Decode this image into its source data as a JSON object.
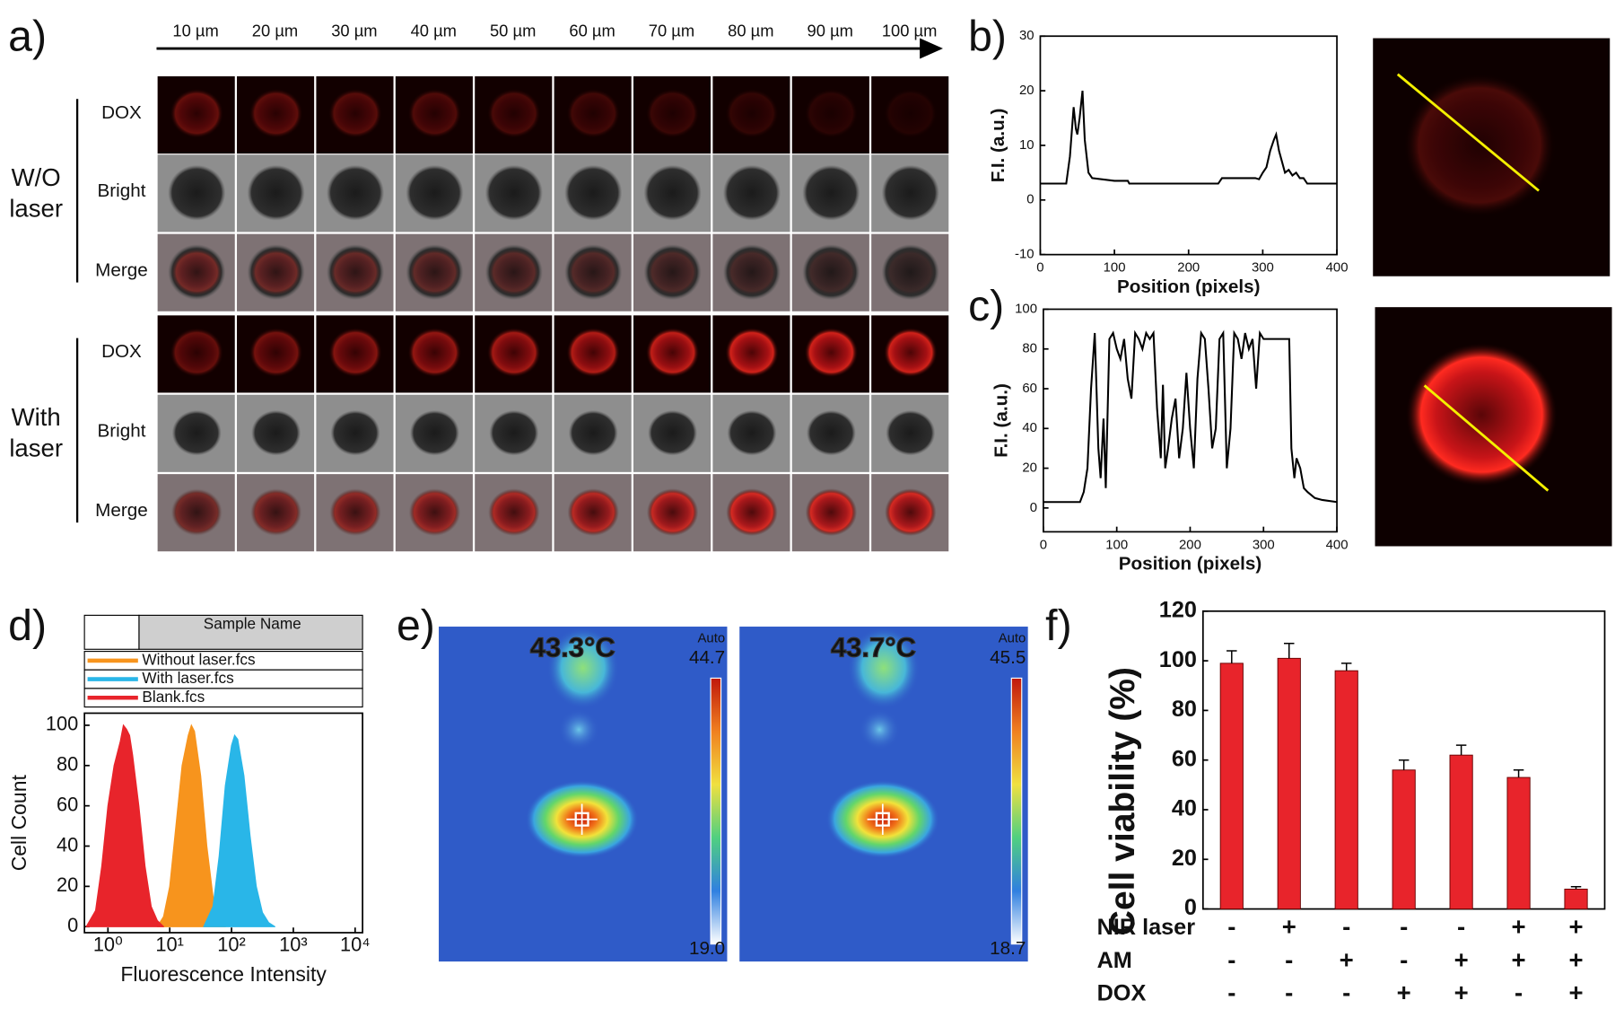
{
  "panel_labels": [
    "a)",
    "b)",
    "c)",
    "d)",
    "e)",
    "f)"
  ],
  "panel_a": {
    "depths": [
      "10 µm",
      "20 µm",
      "30 µm",
      "40 µm",
      "50 µm",
      "60 µm",
      "70 µm",
      "80 µm",
      "90 µm",
      "100 µm"
    ],
    "groups": [
      {
        "label_lines": [
          "W/O",
          "laser"
        ],
        "rows": [
          "DOX",
          "Bright",
          "Merge"
        ]
      },
      {
        "label_lines": [
          "With",
          "laser"
        ],
        "rows": [
          "DOX",
          "Bright",
          "Merge"
        ]
      }
    ]
  },
  "chart_data": [
    {
      "type": "line",
      "xlabel": "Position (pixels)",
      "ylabel": "F.I. (a.u.)",
      "color": "#000000",
      "x": [
        0,
        20,
        35,
        40,
        45,
        48,
        50,
        53,
        57,
        60,
        65,
        70,
        100,
        118,
        120,
        125,
        200,
        240,
        245,
        290,
        295,
        300,
        305,
        310,
        315,
        318,
        322,
        326,
        330,
        335,
        340,
        345,
        350,
        355,
        360,
        400
      ],
      "values": [
        3,
        3,
        3,
        8,
        17,
        13,
        12,
        15,
        20,
        11,
        5,
        4,
        3.5,
        3.5,
        3,
        3,
        3,
        3,
        4,
        4,
        3.8,
        5,
        6,
        9,
        11,
        12,
        9,
        7,
        5,
        5.5,
        4.5,
        5,
        4,
        4,
        3,
        3
      ],
      "xlim": [
        0,
        400
      ],
      "xticks": [
        0,
        100,
        200,
        300,
        400
      ],
      "ylim": [
        -10,
        30
      ],
      "yticks": [
        -10,
        0,
        10,
        20,
        30
      ]
    },
    {
      "type": "line",
      "xlabel": "Position (pixels)",
      "ylabel": "F.I. (a.u.)",
      "color": "#000000",
      "x": [
        0,
        50,
        55,
        60,
        65,
        70,
        75,
        78,
        82,
        85,
        90,
        95,
        100,
        105,
        110,
        115,
        120,
        125,
        130,
        135,
        140,
        145,
        150,
        155,
        160,
        163,
        166,
        170,
        175,
        180,
        185,
        190,
        195,
        200,
        205,
        210,
        215,
        220,
        225,
        230,
        235,
        240,
        245,
        250,
        255,
        260,
        265,
        270,
        275,
        280,
        285,
        290,
        295,
        300,
        335,
        338,
        342,
        345,
        350,
        355,
        360,
        370,
        380,
        400
      ],
      "values": [
        3,
        3,
        8,
        20,
        60,
        88,
        30,
        15,
        45,
        10,
        85,
        88,
        80,
        75,
        85,
        65,
        55,
        88,
        85,
        80,
        88,
        85,
        88,
        50,
        25,
        62,
        20,
        30,
        45,
        55,
        25,
        40,
        68,
        40,
        20,
        65,
        88,
        85,
        60,
        30,
        40,
        85,
        88,
        20,
        40,
        88,
        85,
        75,
        88,
        80,
        85,
        60,
        88,
        85,
        85,
        30,
        15,
        25,
        20,
        10,
        8,
        5,
        4,
        3
      ],
      "xlim": [
        0,
        400
      ],
      "xticks": [
        0,
        100,
        200,
        300,
        400
      ],
      "ylim": [
        -12,
        100
      ],
      "yticks": [
        0,
        20,
        40,
        60,
        80,
        100
      ]
    },
    {
      "type": "area",
      "xlabel": "Fluorescence Intensity",
      "ylabel": "Cell Count",
      "legend_header": "Sample Name",
      "series": [
        {
          "name": "Without laser.fcs",
          "color": "#f7941d",
          "x": [
            0.8,
            0.9,
            1.0,
            1.1,
            1.2,
            1.3,
            1.35,
            1.4,
            1.5,
            1.6,
            1.7,
            1.8,
            1.9
          ],
          "values": [
            0,
            5,
            20,
            50,
            80,
            95,
            100,
            97,
            75,
            40,
            15,
            3,
            0
          ]
        },
        {
          "name": "With laser.fcs",
          "color": "#29b6e8",
          "x": [
            1.55,
            1.7,
            1.8,
            1.9,
            2.0,
            2.05,
            2.1,
            2.2,
            2.3,
            2.4,
            2.5,
            2.6,
            2.7
          ],
          "values": [
            0,
            10,
            35,
            70,
            90,
            95,
            93,
            75,
            45,
            20,
            7,
            2,
            0
          ]
        },
        {
          "name": "Blank.fcs",
          "color": "#e8242b",
          "x": [
            -0.35,
            -0.2,
            -0.1,
            0,
            0.1,
            0.2,
            0.25,
            0.3,
            0.35,
            0.4,
            0.5,
            0.6,
            0.7,
            0.8,
            0.9
          ],
          "values": [
            0,
            8,
            30,
            60,
            80,
            92,
            100,
            98,
            95,
            85,
            60,
            30,
            10,
            3,
            0
          ]
        }
      ],
      "xlim": [
        -0.38,
        4.12
      ],
      "xticks": [
        {
          "value": 0,
          "label": "10⁰"
        },
        {
          "value": 1,
          "label": "10¹"
        },
        {
          "value": 2,
          "label": "10²"
        },
        {
          "value": 3,
          "label": "10³"
        },
        {
          "value": 4,
          "label": "10⁴"
        }
      ],
      "ylim": [
        -3,
        106
      ],
      "yticks": [
        0,
        20,
        40,
        60,
        80,
        100
      ]
    },
    {
      "type": "bar",
      "ylabel": "Cell viability (%)",
      "color": "#e8242b",
      "categories": [
        null,
        null,
        null,
        null,
        null,
        null,
        null
      ],
      "values": [
        99,
        101,
        96,
        56,
        62,
        53,
        8
      ],
      "errors": [
        5,
        6,
        3,
        4,
        4,
        3,
        1
      ],
      "ylim": [
        0,
        120
      ],
      "yticks": [
        0,
        20,
        40,
        60,
        80,
        100,
        120
      ],
      "conditions": [
        {
          "name": "NIR laser",
          "values": [
            "-",
            "+",
            "-",
            "-",
            "-",
            "+",
            "+"
          ]
        },
        {
          "name": "AM",
          "values": [
            "-",
            "-",
            "+",
            "-",
            "+",
            "+",
            "+"
          ]
        },
        {
          "name": "DOX",
          "values": [
            "-",
            "-",
            "-",
            "+",
            "+",
            "-",
            "+"
          ]
        }
      ]
    }
  ],
  "panel_e": {
    "images": [
      {
        "temperature": "43.3°C",
        "mode": "Auto",
        "max": "44.7",
        "min": "19.0"
      },
      {
        "temperature": "43.7°C",
        "mode": "Auto",
        "max": "45.5",
        "min": "18.7"
      }
    ]
  }
}
